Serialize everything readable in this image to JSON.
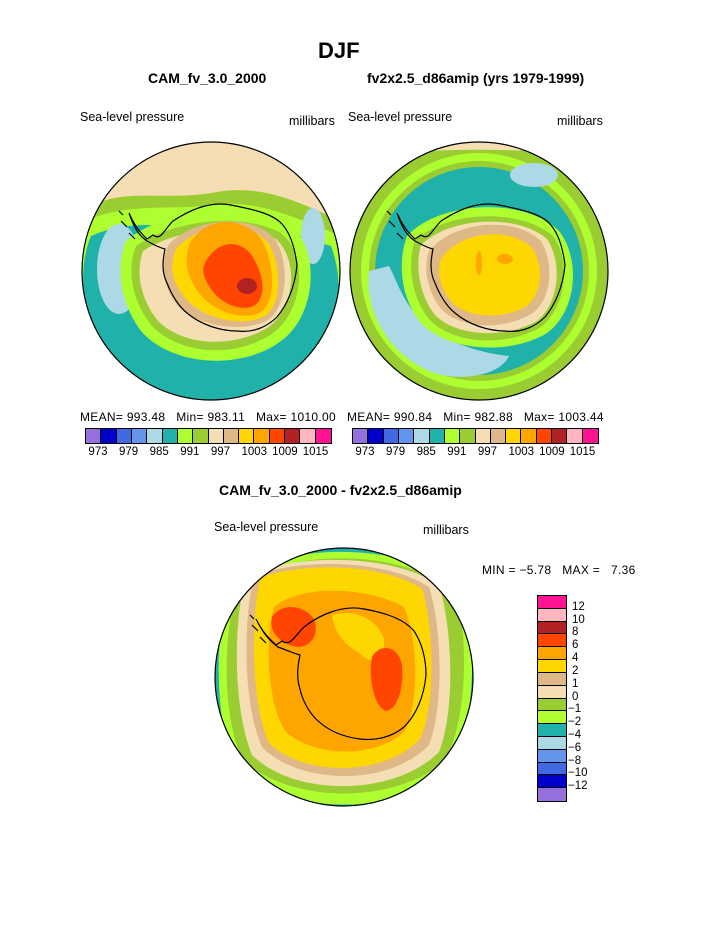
{
  "page": {
    "season": "DJF",
    "left_title": "CAM_fv_3.0_2000",
    "right_title": "fv2x2.5_d86amip (yrs 1979-1999)",
    "diff_title": "CAM_fv_3.0_2000 - fv2x2.5_d86amip"
  },
  "left_panel": {
    "variable": "Sea-level pressure",
    "units": "millibars",
    "mean_label": "MEAN=",
    "mean": "993.48",
    "min_label": "Min=",
    "min": "983.11",
    "max_label": "Max=",
    "max": "1010.00"
  },
  "right_panel": {
    "variable": "Sea-level pressure",
    "units": "millibars",
    "mean_label": "MEAN=",
    "mean": "990.84",
    "min_label": "Min=",
    "min": "982.88",
    "max_label": "Max=",
    "max": "1003.44"
  },
  "diff_panel": {
    "variable": "Sea-level pressure",
    "units": "millibars",
    "min_label": "MIN =",
    "min": "−5.78",
    "max_label": "MAX =",
    "max": "7.36"
  },
  "colorbar_abs": {
    "colors": [
      "#9370db",
      "#0000cd",
      "#4169e1",
      "#6495ed",
      "#add8e6",
      "#20b2aa",
      "#adff2f",
      "#9acd32",
      "#f5deb3",
      "#deb887",
      "#ffd700",
      "#ffa500",
      "#ff4500",
      "#b22222",
      "#ffb6c1",
      "#ff1493"
    ],
    "ticks": [
      "973",
      "979",
      "985",
      "991",
      "997",
      "1003",
      "1009",
      "1015"
    ]
  },
  "colorbar_diff": {
    "colors_top_to_bottom": [
      "#ff1493",
      "#ffb6c1",
      "#b22222",
      "#ff4500",
      "#ffa500",
      "#ffd700",
      "#deb887",
      "#f5deb3",
      "#9acd32",
      "#adff2f",
      "#20b2aa",
      "#add8e6",
      "#6495ed",
      "#4169e1",
      "#0000cd",
      "#9370db"
    ],
    "ticks_top_to_bottom": [
      "12",
      "10",
      "8",
      "6",
      "4",
      "2",
      "1",
      "0",
      "−1",
      "−2",
      "−4",
      "−6",
      "−8",
      "−10",
      "−12"
    ]
  },
  "map_colors": {
    "beige": "#f5deb3",
    "green": "#9acd32",
    "lime": "#adff2f",
    "teal": "#20b2aa",
    "lightblue": "#add8e6",
    "tan": "#deb887",
    "yellow": "#ffd700",
    "orange": "#ffa500",
    "red": "#ff4500",
    "darkred": "#b22222"
  }
}
